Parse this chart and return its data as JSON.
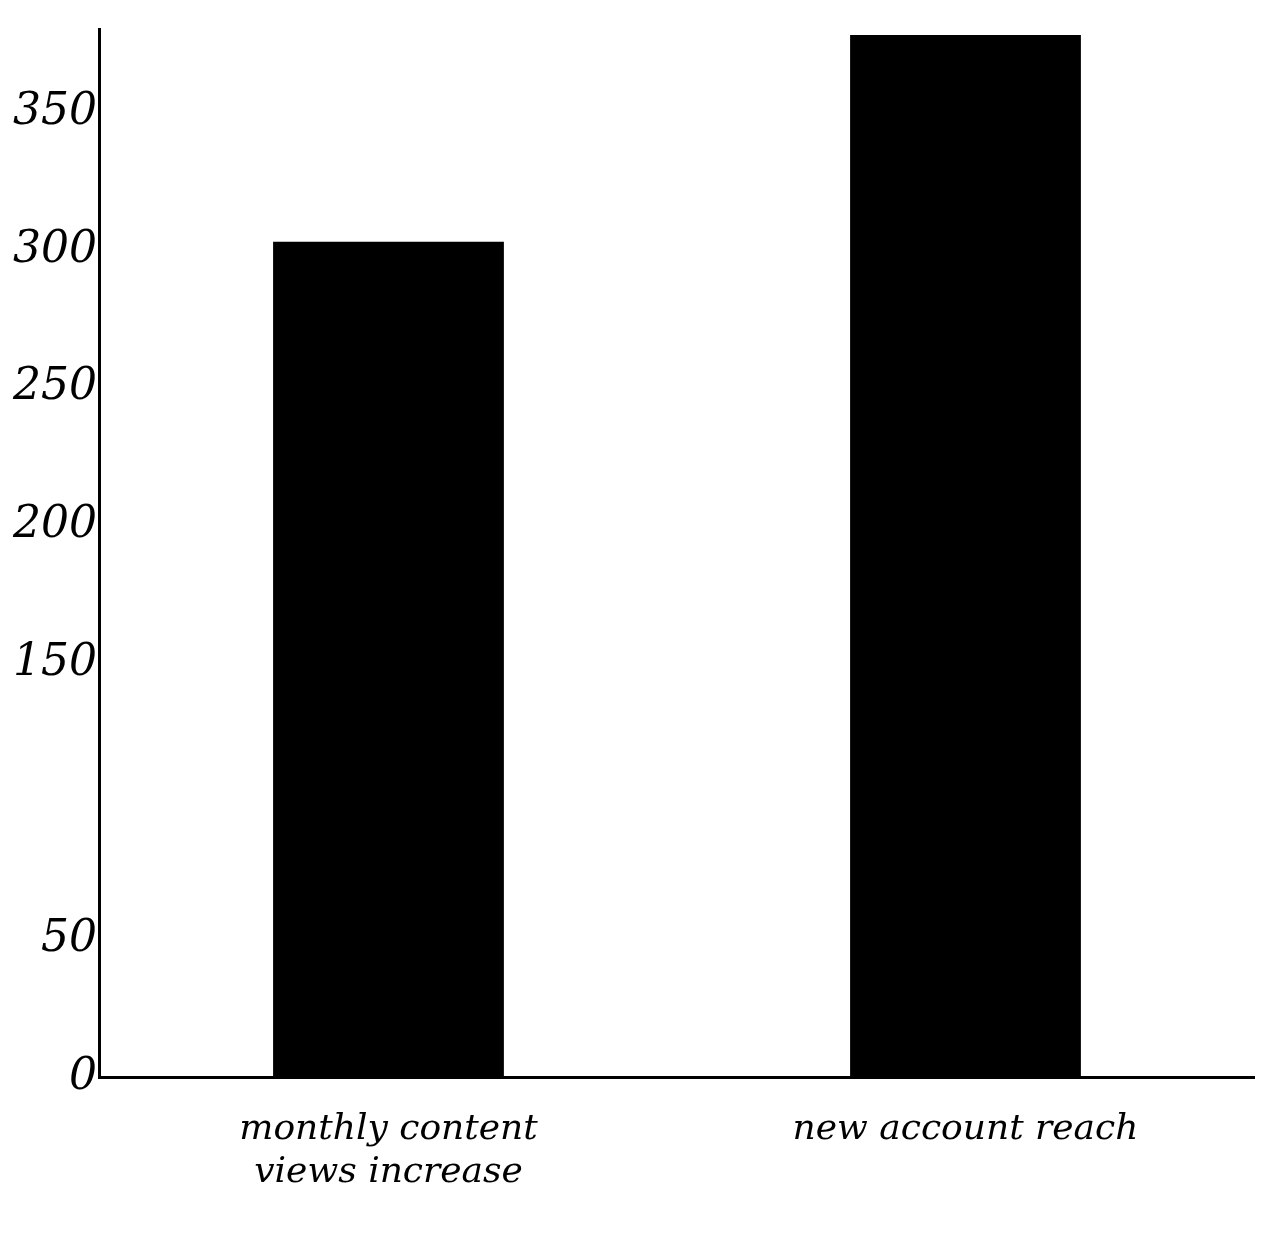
{
  "chart_data": {
    "type": "bar",
    "categories": [
      "monthly content views increase",
      "new account reach"
    ],
    "values": [
      303,
      378
    ],
    "color": "#000000",
    "ylim": [
      0,
      380
    ],
    "yticks": [
      0,
      50,
      150,
      200,
      250,
      300,
      350
    ],
    "grid": false,
    "legend": false
  }
}
